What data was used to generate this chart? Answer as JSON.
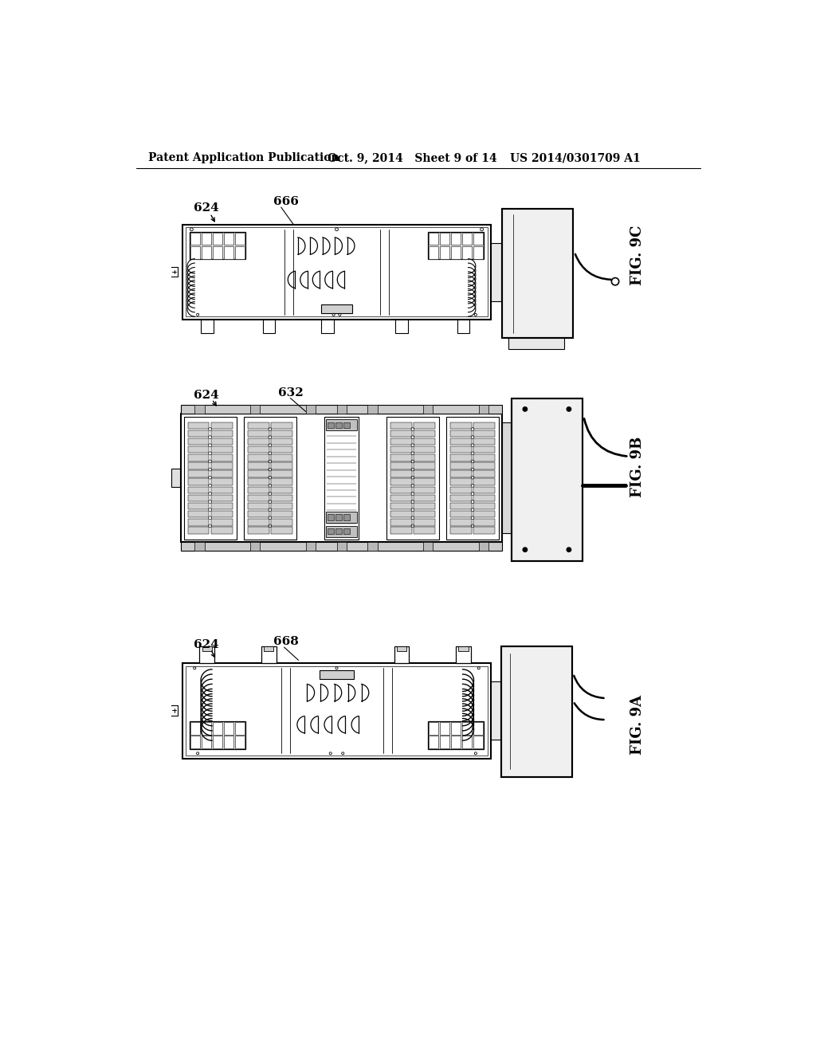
{
  "background_color": "#ffffff",
  "header_left": "Patent Application Publication",
  "header_middle": "Oct. 9, 2014   Sheet 9 of 14",
  "header_right": "US 2014/0301709 A1",
  "fig9c_label": "FIG. 9C",
  "fig9b_label": "FIG. 9B",
  "fig9a_label": "FIG. 9A",
  "ref_624": "624",
  "ref_666": "666",
  "ref_632": "632",
  "ref_668": "668",
  "line_color": "#000000",
  "line_width": 1.5,
  "fig_label_fontsize": 13,
  "header_fontsize": 10
}
